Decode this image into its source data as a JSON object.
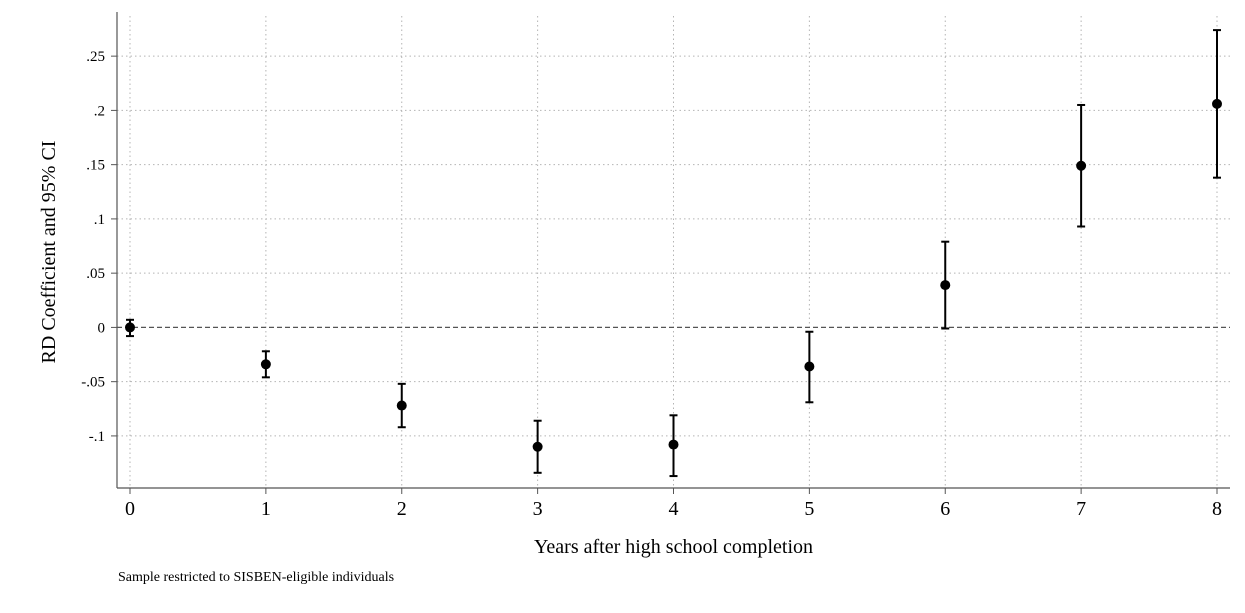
{
  "chart_data": {
    "type": "scatter",
    "xlabel": "Years after high school completion",
    "ylabel": "RD Coefficient and 95% CI",
    "xlim": [
      0,
      8
    ],
    "ylim": [
      -0.148,
      0.287
    ],
    "x_ticks": [
      0,
      1,
      2,
      3,
      4,
      5,
      6,
      7,
      8
    ],
    "x_tick_labels": [
      "0",
      "1",
      "2",
      "3",
      "4",
      "5",
      "6",
      "7",
      "8"
    ],
    "y_ticks": [
      -0.1,
      -0.05,
      0,
      0.05,
      0.1,
      0.15,
      0.2,
      0.25
    ],
    "y_tick_labels": [
      "-.1",
      "-.05",
      "0",
      ".05",
      ".1",
      ".15",
      ".2",
      ".25"
    ],
    "grid": true,
    "reference_line": {
      "y": 0,
      "style": "dashed"
    },
    "points": [
      {
        "x": 0,
        "y": 0.0,
        "ci_low": -0.008,
        "ci_high": 0.007
      },
      {
        "x": 1,
        "y": -0.034,
        "ci_low": -0.046,
        "ci_high": -0.022
      },
      {
        "x": 2,
        "y": -0.072,
        "ci_low": -0.092,
        "ci_high": -0.052
      },
      {
        "x": 3,
        "y": -0.11,
        "ci_low": -0.134,
        "ci_high": -0.086
      },
      {
        "x": 4,
        "y": -0.108,
        "ci_low": -0.137,
        "ci_high": -0.081
      },
      {
        "x": 5,
        "y": -0.036,
        "ci_low": -0.069,
        "ci_high": -0.004
      },
      {
        "x": 6,
        "y": 0.039,
        "ci_low": -0.001,
        "ci_high": 0.079
      },
      {
        "x": 7,
        "y": 0.149,
        "ci_low": 0.093,
        "ci_high": 0.205
      },
      {
        "x": 8,
        "y": 0.206,
        "ci_low": 0.138,
        "ci_high": 0.274
      }
    ]
  },
  "note": "Sample restricted to SISBEN-eligible individuals",
  "colors": {
    "marker": "#000000",
    "grid": "#b4b4b4",
    "axis": "#555555",
    "refline": "#555555"
  }
}
